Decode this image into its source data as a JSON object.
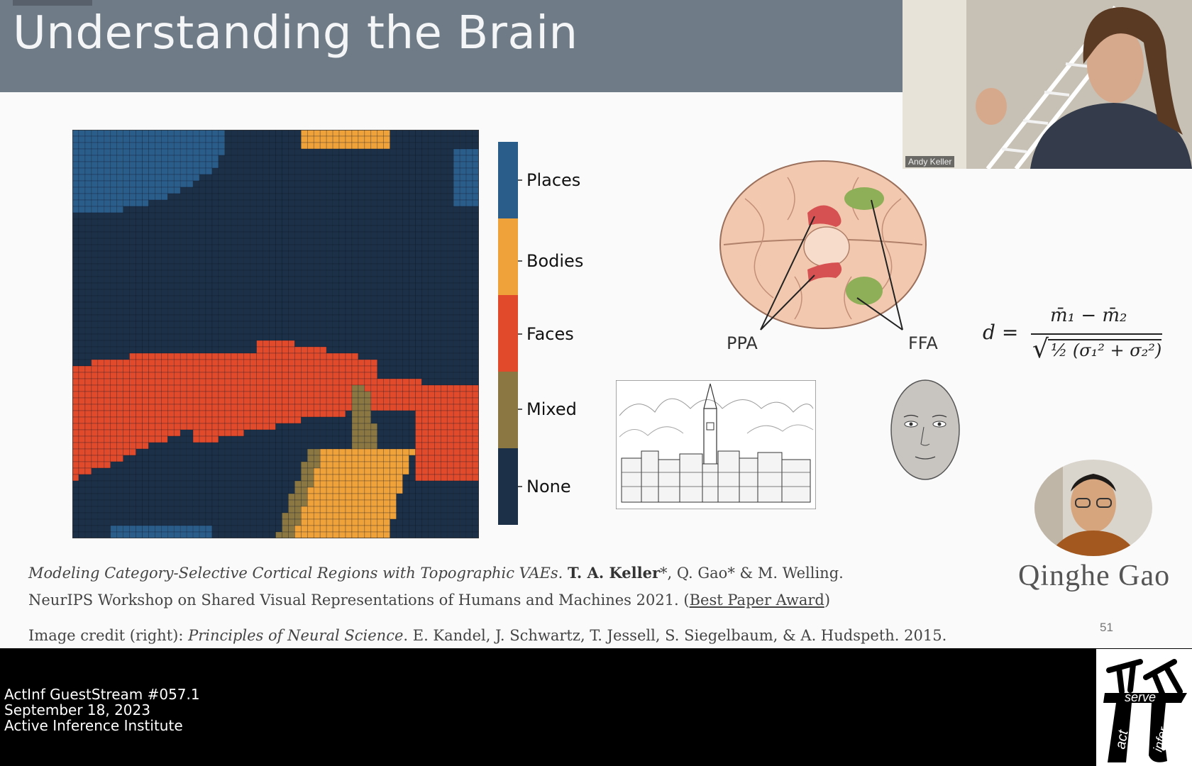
{
  "slide": {
    "title": "Understanding the Brain",
    "page_number": "51",
    "colorbar_labels": [
      "Places",
      "Bodies",
      "Faces",
      "Mixed",
      "None"
    ],
    "category_colors": {
      "Places": "#2b5d8a",
      "Bodies": "#f0a23a",
      "Faces": "#e24a2c",
      "Mixed": "#8a7742",
      "None": "#1c3148"
    },
    "brain_labels": {
      "left": "PPA",
      "right": "FFA"
    },
    "formula": {
      "lhs": "d =",
      "numerator": "m̄₁ − m̄₂",
      "denominator": "½ (σ₁² + σ₂²)"
    },
    "citation": {
      "line1_title": "Modeling Category-Selective Cortical Regions with Topographic VAEs.",
      "line1_author_bold": "T. A. Keller",
      "line1_rest": "*, Q. Gao* & M. Welling.",
      "line2_text": "NeurIPS Workshop on Shared Visual Representations of Humans and Machines 2021. (",
      "line2_link": "Best Paper Award",
      "line2_end": ")",
      "line3_prefix": "Image credit (right): ",
      "line3_title": "Principles of Neural Science",
      "line3_rest": ". E. Kandel, J. Schwartz, T. Jessell, S. Siegelbaum, & A. Hudspeth. 2015."
    },
    "author_name": "Qinghe Gao"
  },
  "webcam": {
    "participant_name": "Andy Keller"
  },
  "stream": {
    "line1": "ActInf GuestStream #057.1",
    "line2": "September 18, 2023",
    "line3": "Active Inference Institute"
  },
  "logo": {
    "word1": "serve",
    "word2": "act",
    "word3": "infer"
  }
}
